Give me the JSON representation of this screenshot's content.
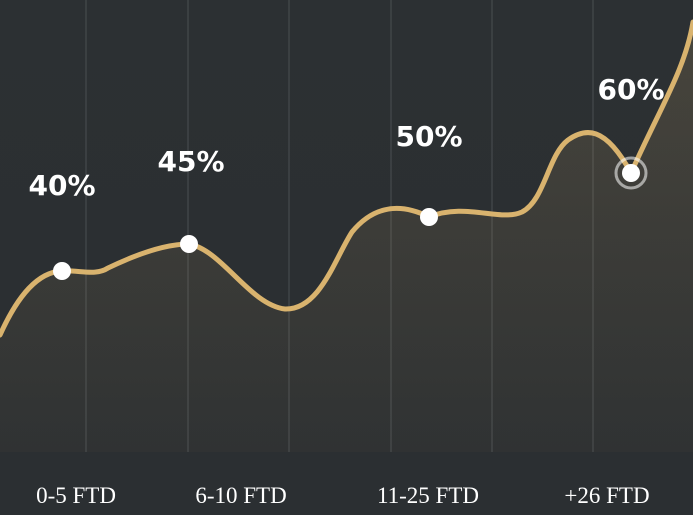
{
  "chart_data": {
    "type": "area",
    "categories": [
      "0-5 FTD",
      "6-10 FTD",
      "11-25 FTD",
      "+26 FTD"
    ],
    "values": [
      40,
      45,
      50,
      60
    ],
    "value_labels": [
      "40%",
      "45%",
      "50%",
      "60%"
    ],
    "unit": "%",
    "highlighted_index": 3,
    "grid": "vertical",
    "legend": "none",
    "colors": {
      "background": "#2b2f32",
      "line": "#d9b36e",
      "area_fill": "#d9b36e",
      "grid": "#4a4f52",
      "text": "#ffffff",
      "marker": "#ffffff"
    }
  }
}
